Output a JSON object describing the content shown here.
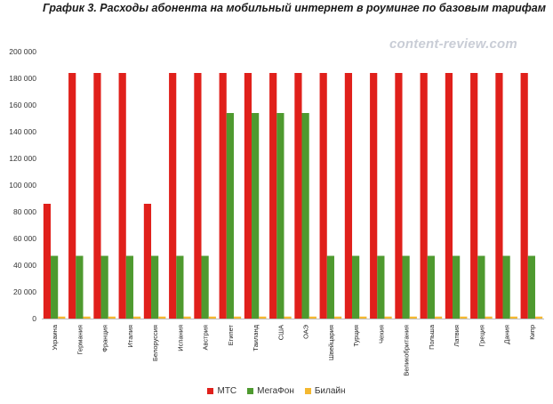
{
  "chart_data": {
    "type": "bar",
    "title": "График 3. Расходы абонента на мобильный интернет в роуминге по базовым тарифам",
    "watermark": "content-review.com",
    "xlabel": "",
    "ylabel": "",
    "ylim": [
      0,
      200000
    ],
    "yticks": [
      0,
      20000,
      40000,
      60000,
      80000,
      100000,
      120000,
      140000,
      160000,
      180000,
      200000
    ],
    "ytick_labels": [
      "0",
      "20 000",
      "40 000",
      "60 000",
      "80 000",
      "100 000",
      "120 000",
      "140 000",
      "160 000",
      "180 000",
      "200 000"
    ],
    "grid": false,
    "legend_position": "bottom",
    "categories": [
      "Украина",
      "Германия",
      "Франция",
      "Италия",
      "Белоруссия",
      "Испания",
      "Австрия",
      "Египет",
      "Таиланд",
      "США",
      "ОАЭ",
      "Швейцария",
      "Турция",
      "Чехия",
      "Великобритания",
      "Польша",
      "Латвия",
      "Греция",
      "Дания",
      "Кипр"
    ],
    "series": [
      {
        "name": "МТС",
        "color": "#e0201b",
        "values": [
          86000,
          184000,
          184000,
          184000,
          86000,
          184000,
          184000,
          184000,
          184000,
          184000,
          184000,
          184000,
          184000,
          184000,
          184000,
          184000,
          184000,
          184000,
          184000,
          184000
        ]
      },
      {
        "name": "МегаФон",
        "color": "#4e9a2f",
        "values": [
          47000,
          47000,
          47000,
          47000,
          47000,
          47000,
          47000,
          154000,
          154000,
          154000,
          154000,
          47000,
          47000,
          47000,
          47000,
          47000,
          47000,
          47000,
          47000,
          47000
        ]
      },
      {
        "name": "Билайн",
        "color": "#f4b830",
        "values": [
          1500,
          1500,
          1500,
          1500,
          1500,
          1500,
          1500,
          1500,
          1500,
          1500,
          1500,
          1500,
          1500,
          1500,
          1500,
          1500,
          1500,
          1500,
          1500,
          1500
        ]
      }
    ]
  }
}
